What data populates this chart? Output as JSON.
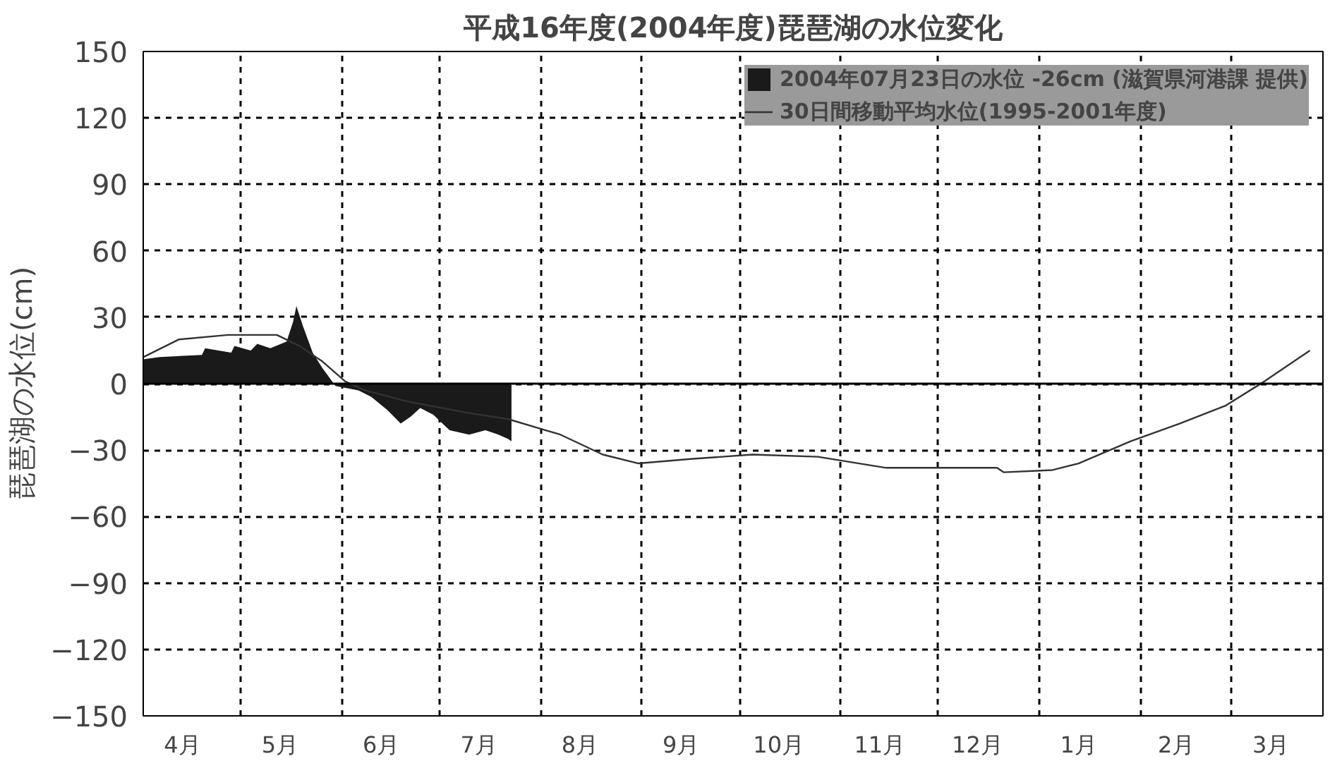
{
  "chart_data": {
    "type": "area",
    "title": "平成16年度(2004年度)琵琶湖の水位変化",
    "ylabel": "琵琶湖の水位(cm)",
    "xlim": [
      "2004-04-01",
      "2005-03-29"
    ],
    "ylim": [
      -150,
      150
    ],
    "yticks": [
      150,
      120,
      90,
      60,
      30,
      0,
      -30,
      -60,
      -90,
      -120,
      -150
    ],
    "xticks": [
      {
        "value": "2004-04-13",
        "label": "4月"
      },
      {
        "value": "2004-05-13",
        "label": "5月"
      },
      {
        "value": "2004-06-13",
        "label": "6月"
      },
      {
        "value": "2004-07-13",
        "label": "7月"
      },
      {
        "value": "2004-08-13",
        "label": "8月"
      },
      {
        "value": "2004-09-13",
        "label": "9月"
      },
      {
        "value": "2004-10-13",
        "label": "10月"
      },
      {
        "value": "2004-11-13",
        "label": "11月"
      },
      {
        "value": "2004-12-13",
        "label": "12月"
      },
      {
        "value": "2005-01-13",
        "label": "1月"
      },
      {
        "value": "2005-02-12",
        "label": "2月"
      },
      {
        "value": "2005-03-13",
        "label": "3月"
      },
      {
        "value": "2004-05-01",
        "label": null
      },
      {
        "value": "2004-06-01",
        "label": null
      },
      {
        "value": "2004-07-01",
        "label": null
      },
      {
        "value": "2004-08-01",
        "label": null
      },
      {
        "value": "2004-09-01",
        "label": null
      },
      {
        "value": "2004-10-01",
        "label": null
      },
      {
        "value": "2004-11-01",
        "label": null
      },
      {
        "value": "2004-12-01",
        "label": null
      },
      {
        "value": "2005-01-01",
        "label": null
      },
      {
        "value": "2005-02-01",
        "label": null
      },
      {
        "value": "2005-03-01",
        "label": null
      }
    ],
    "grid": true,
    "legend": "top right",
    "ref_lines": [
      {
        "axis": "y",
        "value": 0,
        "color": "#000000",
        "line_style": "solid"
      }
    ],
    "series": [
      {
        "name": "2004年07月23日の水位 -26cm (滋賀県河港課 提供)",
        "color": "#1a1a1a",
        "x": [
          "2004-04-01",
          "2004-04-06",
          "2004-04-19",
          "2004-04-20",
          "2004-04-28",
          "2004-04-29",
          "2004-05-04",
          "2004-05-06",
          "2004-05-10",
          "2004-05-15",
          "2004-05-17",
          "2004-05-18",
          "2004-05-20",
          "2004-05-23",
          "2004-05-26",
          "2004-05-30",
          "2004-06-06",
          "2004-06-10",
          "2004-06-15",
          "2004-06-19",
          "2004-06-22",
          "2004-06-25",
          "2004-06-29",
          "2004-07-04",
          "2004-07-10",
          "2004-07-15",
          "2004-07-19",
          "2004-07-22",
          "2004-07-23"
        ],
        "values": [
          11,
          12,
          13,
          16,
          14,
          17,
          15,
          18,
          16,
          19,
          28,
          35,
          26,
          14,
          7,
          -1,
          -3,
          -6,
          -12,
          -18,
          -15,
          -11,
          -14,
          -21,
          -23,
          -21,
          -23,
          -25,
          -26
        ]
      },
      {
        "name": "30日間移動平均水位(1995-2001年度)",
        "type": "line",
        "color": "#333333",
        "x": [
          "2004-04-01",
          "2004-04-12",
          "2004-04-27",
          "2004-05-12",
          "2004-05-19",
          "2004-05-26",
          "2004-06-02",
          "2004-06-08",
          "2004-06-21",
          "2004-07-09",
          "2004-07-22",
          "2004-08-07",
          "2004-08-20",
          "2004-08-31",
          "2004-09-16",
          "2004-10-05",
          "2004-10-25",
          "2004-11-15",
          "2004-12-19",
          "2004-12-21",
          "2005-01-05",
          "2005-01-13",
          "2005-01-29",
          "2005-02-13",
          "2005-02-27",
          "2005-03-11",
          "2005-03-25"
        ],
        "values": [
          12,
          20,
          22,
          22,
          17,
          10,
          1,
          -3,
          -8,
          -13,
          -16,
          -23,
          -32,
          -36,
          -34,
          -32,
          -33,
          -38,
          -38,
          -40,
          -39,
          -36,
          -26,
          -18,
          -10,
          1,
          15
        ]
      }
    ]
  }
}
